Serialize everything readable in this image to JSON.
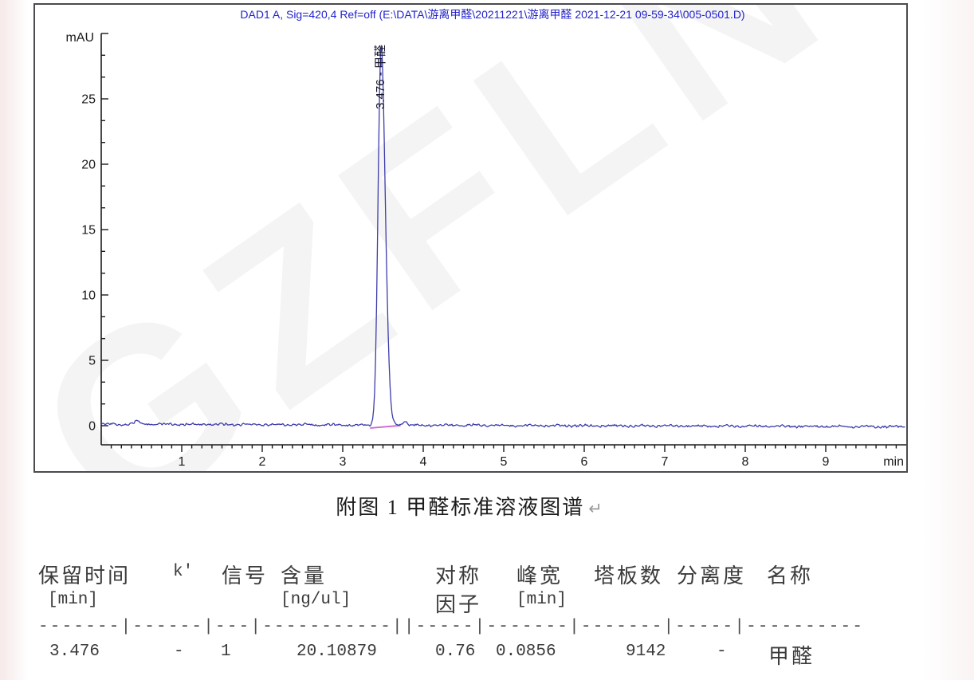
{
  "figure": {
    "header": "DAD1 A, Sig=420,4 Ref=off (E:\\DATA\\游离甲醛\\20211221\\游离甲醛 2021-12-21 09-59-34\\005-0501.D)",
    "watermark": "GZFLN",
    "y_axis_label": "mAU",
    "x_axis_label": "min",
    "peak_label": "3.476 - 甲醛"
  },
  "chart_data": {
    "type": "line",
    "title": "DAD1 A, Sig=420,4 Ref=off (E:\\DATA\\游离甲醛\\20211221\\游离甲醛 2021-12-21 09-59-34\\005-0501.D)",
    "xlabel": "min",
    "ylabel": "mAU",
    "xlim": [
      0,
      10
    ],
    "ylim": [
      -1.5,
      30
    ],
    "x_ticks": [
      1,
      2,
      3,
      4,
      5,
      6,
      7,
      8,
      9
    ],
    "y_ticks": [
      0,
      5,
      10,
      15,
      20,
      25
    ],
    "grid": false,
    "baseline_mAU": 0.12,
    "noise_amplitude_mAU": 0.06,
    "peaks": [
      {
        "retention_min": 3.476,
        "height_mAU": 29.2,
        "width_min": 0.0856,
        "symmetry": 0.76,
        "plates": 9142,
        "amount_ng_ul": 20.10879,
        "name": "甲醛",
        "integration_start_min": 3.34,
        "integration_end_min": 3.72
      }
    ],
    "trace_color": "#3c3cac",
    "integration_color": "#d05fd0"
  },
  "caption": {
    "text": "附图 1 甲醛标准溶液图谱",
    "paragraph_mark": "↵"
  },
  "results_table": {
    "headers": [
      "保留时间",
      "k'",
      "信号",
      "含量",
      "对称",
      "峰宽",
      "塔板数",
      "分离度",
      "名称"
    ],
    "units": {
      "retention": "[min]",
      "amount": "[ng/ul]",
      "symmetry": "因子",
      "peak_width": "[min]"
    },
    "separator": "-------|------|---|-----------||-----|-------|-------|-----|----------",
    "row": {
      "retention_min": "3.476",
      "k_prime": "-",
      "signal": "1",
      "amount_ng_ul": "20.10879",
      "symmetry_factor": "0.76",
      "peak_width_min": "0.0856",
      "plates": "9142",
      "resolution": "-",
      "name": "甲醛"
    }
  }
}
